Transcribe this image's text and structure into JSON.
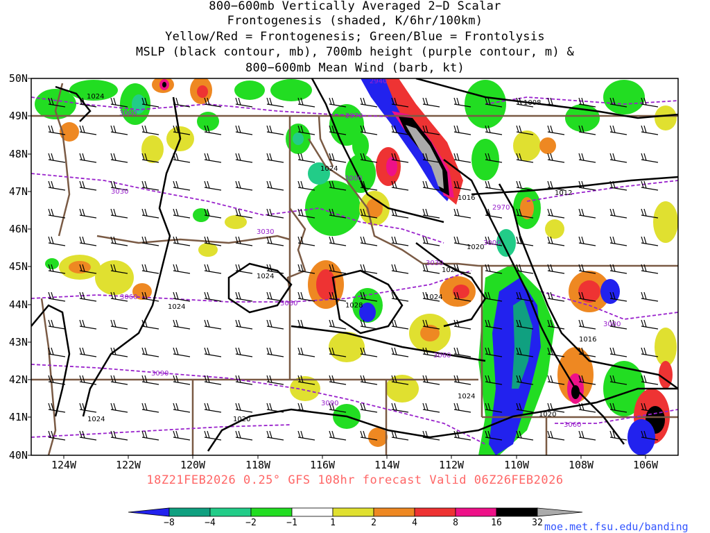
{
  "title": {
    "line1": "800−600mb Vertically Averaged 2−D Scalar",
    "line2": "Frontogenesis (shaded, K/6hr/100km)",
    "line3": "Yellow/Red = Frontogenesis;  Green/Blue = Frontolysis",
    "line4": "MSLP (black contour, mb), 700mb height (purple contour, m) &",
    "line5": "800−600mb Mean Wind (barb, kt)"
  },
  "axes": {
    "lat_labels": [
      "50N",
      "49N",
      "48N",
      "47N",
      "46N",
      "45N",
      "44N",
      "43N",
      "42N",
      "41N",
      "40N"
    ],
    "lon_labels": [
      "124W",
      "122W",
      "120W",
      "118W",
      "116W",
      "114W",
      "112W",
      "110W",
      "108W",
      "106W"
    ],
    "lat_range": [
      40,
      50
    ],
    "lon_range": [
      -125,
      -105
    ]
  },
  "run_info": "18Z21FEB2026 0.25° GFS 108hr forecast Valid 06Z26FEB2026",
  "colorbar": {
    "labels": [
      "−8",
      "−4",
      "−2",
      "−1",
      "1",
      "2",
      "4",
      "8",
      "16",
      "32"
    ],
    "colors": [
      "#2222ee",
      "#10a080",
      "#22cc88",
      "#22dd22",
      "#ffffff",
      "#e0e030",
      "#ee8822",
      "#ee3333",
      "#ee1188",
      "#000000",
      "#aaaaaa"
    ]
  },
  "credit": "moe.met.fsu.edu/banding",
  "contour_labels": {
    "mslp": [
      "1024",
      "1008",
      "1024",
      "1016",
      "1012",
      "1020",
      "1024",
      "1024",
      "1024",
      "1028",
      "1024",
      "1016",
      "1024",
      "1024",
      "1020",
      "1020"
    ],
    "height": [
      "2940",
      "3000",
      "2970",
      "3030",
      "3000",
      "2970",
      "3030",
      "3000",
      "3030",
      "3060",
      "3060",
      "3000",
      "3060",
      "3090",
      "3090",
      "3060"
    ]
  },
  "colors": {
    "mslp": "#000000",
    "height": "#9922cc",
    "borders": "#7a5a44",
    "run_info": "#ff6666",
    "credit": "#3355ff"
  }
}
